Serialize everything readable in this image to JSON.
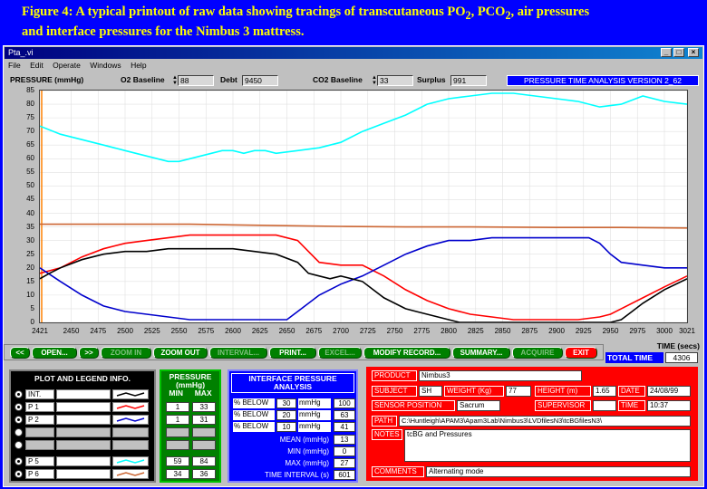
{
  "caption": {
    "line1_a": "Figure 4: A typical printout of raw data showing tracings of transcutaneous PO",
    "sub1": "2",
    "line1_b": ", PCO",
    "sub2": "2",
    "line1_c": ", air pressures",
    "line2": "and interface pressures for the Nimbus 3 mattress."
  },
  "window": {
    "title": "Pta_.vi",
    "min_icon": "minimize-icon",
    "max_icon": "maximize-icon",
    "close_icon": "close-icon"
  },
  "menu": [
    "File",
    "Edit",
    "Operate",
    "Windows",
    "Help"
  ],
  "header": {
    "pressure_label": "PRESSURE (mmHg)",
    "o2_label": "O2 Baseline",
    "o2_value": "88",
    "debt_label": "Debt",
    "debt_value": "9450",
    "co2_label": "CO2 Baseline",
    "co2_value": "33",
    "surplus_label": "Surplus",
    "surplus_value": "991",
    "version": "PRESSURE TIME ANALYSIS VERSION 2_62"
  },
  "chart_data": {
    "type": "line",
    "xlim": [
      2421,
      3021
    ],
    "ylim": [
      0,
      85
    ],
    "yticks": [
      0,
      5,
      10,
      15,
      20,
      25,
      30,
      35,
      40,
      45,
      50,
      55,
      60,
      65,
      70,
      75,
      80,
      85
    ],
    "xticks": [
      2421,
      2450,
      2475,
      2500,
      2525,
      2550,
      2575,
      2600,
      2625,
      2650,
      2675,
      2700,
      2725,
      2750,
      2775,
      2800,
      2825,
      2850,
      2875,
      2900,
      2925,
      2950,
      2975,
      3000,
      3021
    ],
    "series": [
      {
        "color": "#00ffff",
        "x": [
          2421,
          2440,
          2460,
          2480,
          2500,
          2520,
          2540,
          2550,
          2560,
          2570,
          2580,
          2590,
          2600,
          2610,
          2620,
          2630,
          2640,
          2660,
          2680,
          2700,
          2720,
          2740,
          2760,
          2780,
          2800,
          2820,
          2840,
          2860,
          2880,
          2900,
          2920,
          2940,
          2960,
          2980,
          3000,
          3021
        ],
        "y": [
          72,
          69,
          67,
          65,
          63,
          61,
          59,
          59,
          60,
          61,
          62,
          63,
          63,
          62,
          63,
          63,
          62,
          63,
          64,
          66,
          70,
          73,
          76,
          80,
          82,
          83,
          84,
          84,
          83,
          82,
          81,
          79,
          80,
          83,
          81,
          80
        ]
      },
      {
        "color": "#cc6633",
        "x": [
          2421,
          2480,
          2560,
          2640,
          2700,
          2760,
          2820,
          2900,
          2960,
          3021
        ],
        "y": [
          36,
          36,
          36,
          35.5,
          35.2,
          35,
          35,
          34.8,
          34.8,
          34.6
        ]
      },
      {
        "color": "#ff0000",
        "x": [
          2421,
          2440,
          2460,
          2480,
          2500,
          2520,
          2540,
          2560,
          2580,
          2600,
          2620,
          2640,
          2660,
          2670,
          2680,
          2700,
          2720,
          2740,
          2760,
          2780,
          2800,
          2820,
          2840,
          2860,
          2880,
          2900,
          2920,
          2940,
          2950,
          2960,
          2980,
          3000,
          3021
        ],
        "y": [
          18,
          20,
          24,
          27,
          29,
          30,
          31,
          32,
          32,
          32,
          32,
          32,
          30,
          26,
          22,
          21,
          21,
          17,
          12,
          8,
          5,
          3,
          2,
          1,
          1,
          1,
          1,
          2,
          3,
          5,
          9,
          13,
          17
        ]
      },
      {
        "color": "#0000cc",
        "x": [
          2421,
          2440,
          2460,
          2480,
          2500,
          2520,
          2540,
          2560,
          2580,
          2600,
          2620,
          2640,
          2650,
          2660,
          2680,
          2700,
          2720,
          2740,
          2760,
          2780,
          2800,
          2820,
          2840,
          2860,
          2880,
          2900,
          2920,
          2930,
          2940,
          2950,
          2960,
          2980,
          3000,
          3021
        ],
        "y": [
          20,
          15,
          10,
          6,
          4,
          3,
          2,
          1,
          1,
          1,
          1,
          1,
          1,
          4,
          10,
          14,
          17,
          21,
          25,
          28,
          30,
          30,
          31,
          31,
          31,
          31,
          31,
          31,
          29,
          25,
          22,
          21,
          20,
          20
        ]
      },
      {
        "color": "#000000",
        "x": [
          2421,
          2430,
          2440,
          2460,
          2480,
          2500,
          2520,
          2540,
          2560,
          2580,
          2600,
          2620,
          2640,
          2660,
          2670,
          2680,
          2690,
          2700,
          2720,
          2730,
          2740,
          2750,
          2760,
          2770,
          2780,
          2790,
          2800,
          2810,
          2820,
          2840,
          2860,
          2880,
          2900,
          2920,
          2940,
          2950,
          2960,
          2970,
          2980,
          3000,
          3021
        ],
        "y": [
          16,
          18,
          20,
          23,
          25,
          26,
          26,
          27,
          27,
          27,
          27,
          26,
          25,
          22,
          18,
          17,
          16,
          17,
          15,
          12,
          9,
          7,
          5,
          4,
          3,
          2,
          1,
          0,
          0,
          0,
          0,
          0,
          0,
          0,
          0,
          0,
          1,
          4,
          7,
          12,
          16
        ]
      }
    ]
  },
  "toolbar": {
    "prev": "<<",
    "open": "OPEN...",
    "next": ">>",
    "zoom_in": "ZOOM IN",
    "zoom_out": "ZOOM OUT",
    "interval": "INTERVAL...",
    "print": "PRINT...",
    "excel": "EXCEL...",
    "modify": "MODIFY RECORD...",
    "summary": "SUMMARY...",
    "acquire": "ACQUIRE",
    "exit": "EXIT"
  },
  "time": {
    "label": "TIME (secs)",
    "total_label": "TOTAL TIME",
    "total_value": "4306"
  },
  "legend": {
    "title": "PLOT AND LEGEND INFO.",
    "rows": [
      {
        "name": "INT.",
        "color": "#000000"
      },
      {
        "name": "P 1",
        "color": "#ff0000"
      },
      {
        "name": "P 2",
        "color": "#0000cc"
      },
      {
        "name": "",
        "color": ""
      },
      {
        "name": "",
        "color": ""
      },
      {
        "name": "P 5",
        "color": "#00ffff"
      },
      {
        "name": "P 6",
        "color": "#cc6633"
      }
    ]
  },
  "pressure": {
    "title1": "PRESSURE",
    "title2": "(mmHg)",
    "min_label": "MIN",
    "max_label": "MAX",
    "rows": [
      {
        "min": "1",
        "max": "33"
      },
      {
        "min": "1",
        "max": "31"
      },
      {
        "min": "",
        "max": ""
      },
      {
        "min": "",
        "max": ""
      },
      {
        "min": "59",
        "max": "84"
      },
      {
        "min": "34",
        "max": "36"
      }
    ]
  },
  "interface": {
    "title1": "INTERFACE PRESSURE",
    "title2": "ANALYSIS",
    "below_label": "% BELOW",
    "unit": "mmHg",
    "below": [
      {
        "threshold": "30",
        "value": "100"
      },
      {
        "threshold": "20",
        "value": "63"
      },
      {
        "threshold": "10",
        "value": "41"
      }
    ],
    "mean_label": "MEAN (mmHg)",
    "mean_value": "13",
    "min_label": "MIN (mmHg)",
    "min_value": "0",
    "max_label": "MAX (mmHg)",
    "max_value": "27",
    "interval_label": "TIME INTERVAL (s)",
    "interval_value": "601"
  },
  "info": {
    "product_label": "PRODUCT",
    "product_value": "Nimbus3",
    "subject_label": "SUBJECT",
    "subject_value": "SH",
    "weight_label": "WEIGHT (Kg)",
    "weight_value": "77",
    "height_label": "HEIGHT (m)",
    "height_value": "1.65",
    "date_label": "DATE",
    "date_value": "24/08/99",
    "sensor_label": "SENSOR POSITION",
    "sensor_value": "Sacrum",
    "supervisor_label": "SUPERVISOR",
    "supervisor_value": "",
    "time_label": "TIME",
    "time_value": "10:37",
    "path_label": "PATH",
    "path_value": "C:\\Huntleigh\\APAM3\\Apam3Lab\\Nimbus3\\LVDfilesN3\\tcBGfilesN3\\",
    "notes_label": "NOTES",
    "notes_value": "tcBG and Pressures",
    "comments_label": "COMMENTS",
    "comments_value": "Alternating mode"
  }
}
